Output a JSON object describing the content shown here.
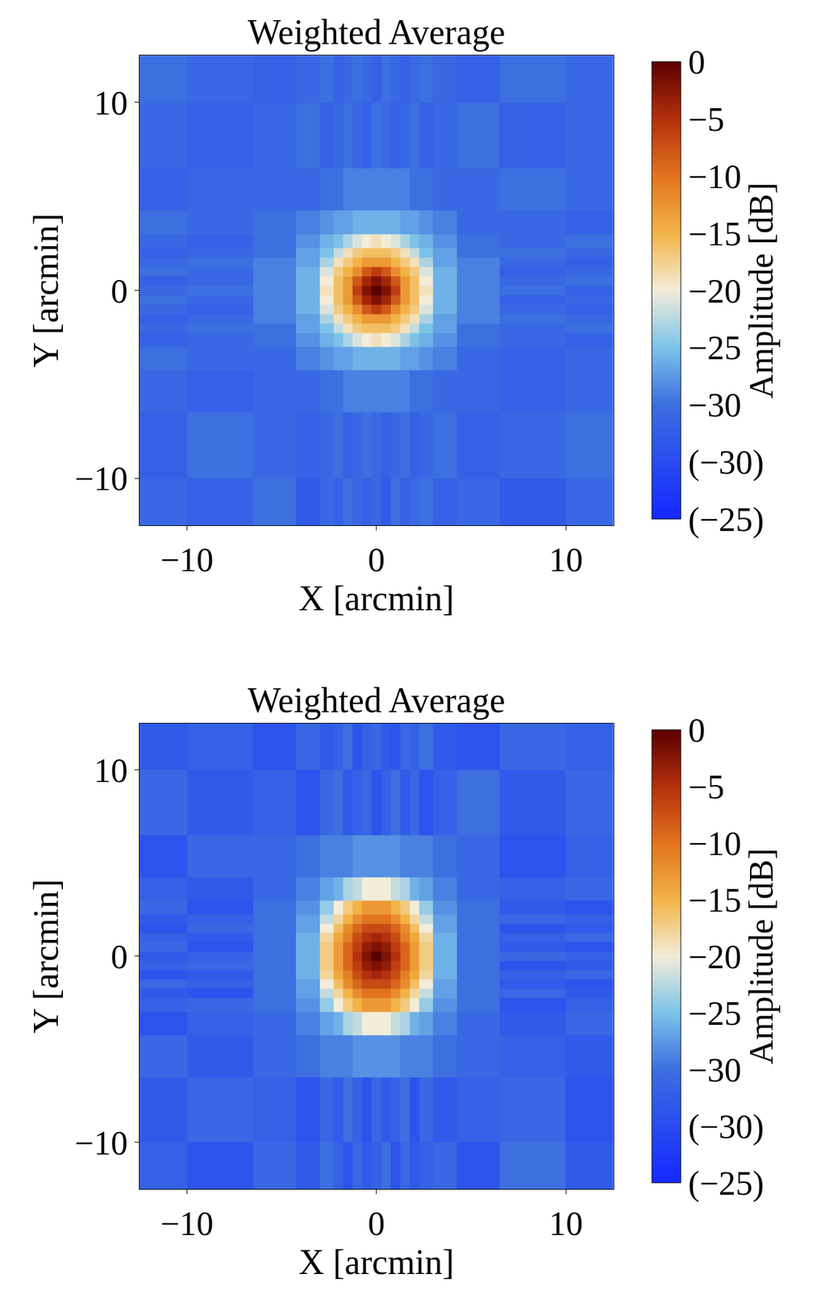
{
  "chart_data": [
    {
      "type": "heatmap",
      "title": "Weighted Average",
      "x_label": "X [arcmin]",
      "y_label": "Y [arcmin]",
      "xlim": [
        -12.5,
        12.5
      ],
      "ylim": [
        -12.5,
        12.5
      ],
      "xticks": [
        -10,
        0,
        10
      ],
      "yticks": [
        -10,
        0,
        10
      ],
      "x": [
        -12,
        -8,
        -5,
        -3.5,
        -2.5,
        -2,
        -1.5,
        -1,
        -0.5,
        0,
        0.5,
        1,
        1.5,
        2,
        2.5,
        3.5,
        5,
        8,
        12
      ],
      "y": [
        -12,
        -8,
        -5,
        -3.5,
        -2.5,
        -2,
        -1.5,
        -1,
        -0.5,
        0,
        0.5,
        1,
        1.5,
        2,
        2.5,
        3.5,
        5,
        8,
        12
      ],
      "z": [
        [
          -31,
          -32,
          -30,
          -33,
          -31,
          -32,
          -30,
          -31,
          -32,
          -31,
          -33,
          -30,
          -32,
          -31,
          -30,
          -32,
          -31,
          -33,
          -31
        ],
        [
          -32,
          -30,
          -31,
          -32,
          -31,
          -30,
          -32,
          -31,
          -30,
          -31,
          -32,
          -31,
          -30,
          -32,
          -31,
          -30,
          -32,
          -31,
          -30
        ],
        [
          -31,
          -32,
          -31,
          -31,
          -30,
          -30,
          -29,
          -29,
          -29,
          -29,
          -29,
          -29,
          -29,
          -30,
          -30,
          -31,
          -31,
          -32,
          -31
        ],
        [
          -30,
          -31,
          -31,
          -29,
          -28,
          -27,
          -27,
          -26,
          -26,
          -26,
          -26,
          -26,
          -27,
          -27,
          -28,
          -29,
          -31,
          -32,
          -31
        ],
        [
          -32,
          -31,
          -30,
          -28,
          -26,
          -25,
          -23,
          -21,
          -20,
          -19,
          -20,
          -21,
          -23,
          -25,
          -26,
          -28,
          -30,
          -31,
          -32
        ],
        [
          -31,
          -30,
          -30,
          -27,
          -25,
          -22,
          -19,
          -17,
          -16,
          -16,
          -16,
          -17,
          -19,
          -22,
          -25,
          -27,
          -30,
          -31,
          -30
        ],
        [
          -32,
          -31,
          -29,
          -27,
          -23,
          -19,
          -17,
          -15,
          -13,
          -13,
          -13,
          -15,
          -17,
          -19,
          -23,
          -27,
          -29,
          -30,
          -31
        ],
        [
          -31,
          -32,
          -29,
          -26,
          -21,
          -17,
          -15,
          -12,
          -8,
          -6,
          -8,
          -12,
          -15,
          -17,
          -21,
          -26,
          -29,
          -31,
          -32
        ],
        [
          -30,
          -31,
          -29,
          -26,
          -20,
          -16,
          -13,
          -8,
          -4,
          -2,
          -4,
          -8,
          -13,
          -16,
          -20,
          -26,
          -29,
          -32,
          -31
        ],
        [
          -31,
          -30,
          -29,
          -26,
          -19,
          -16,
          -13,
          -6,
          -2,
          0,
          -2,
          -6,
          -13,
          -16,
          -19,
          -26,
          -29,
          -30,
          -32
        ],
        [
          -32,
          -31,
          -29,
          -26,
          -20,
          -16,
          -13,
          -8,
          -4,
          -2,
          -4,
          -8,
          -13,
          -16,
          -20,
          -26,
          -29,
          -31,
          -30
        ],
        [
          -30,
          -31,
          -29,
          -26,
          -21,
          -17,
          -15,
          -12,
          -8,
          -6,
          -8,
          -12,
          -15,
          -17,
          -21,
          -26,
          -29,
          -32,
          -31
        ],
        [
          -31,
          -30,
          -29,
          -27,
          -23,
          -19,
          -17,
          -15,
          -13,
          -13,
          -13,
          -15,
          -17,
          -19,
          -23,
          -27,
          -29,
          -31,
          -32
        ],
        [
          -32,
          -31,
          -30,
          -27,
          -25,
          -22,
          -19,
          -17,
          -16,
          -16,
          -16,
          -17,
          -19,
          -22,
          -25,
          -27,
          -30,
          -30,
          -31
        ],
        [
          -31,
          -32,
          -30,
          -28,
          -26,
          -25,
          -23,
          -21,
          -20,
          -19,
          -20,
          -21,
          -23,
          -25,
          -26,
          -28,
          -30,
          -31,
          -30
        ],
        [
          -30,
          -31,
          -30,
          -29,
          -28,
          -27,
          -27,
          -26,
          -26,
          -26,
          -26,
          -26,
          -27,
          -27,
          -28,
          -29,
          -31,
          -31,
          -32
        ],
        [
          -32,
          -31,
          -31,
          -31,
          -30,
          -30,
          -29,
          -29,
          -29,
          -29,
          -29,
          -29,
          -29,
          -30,
          -30,
          -31,
          -31,
          -30,
          -31
        ],
        [
          -31,
          -32,
          -31,
          -30,
          -32,
          -31,
          -30,
          -31,
          -32,
          -30,
          -31,
          -32,
          -31,
          -30,
          -32,
          -31,
          -30,
          -32,
          -31
        ],
        [
          -30,
          -31,
          -32,
          -31,
          -30,
          -32,
          -31,
          -30,
          -31,
          -32,
          -30,
          -31,
          -32,
          -31,
          -30,
          -31,
          -32,
          -30,
          -31
        ]
      ],
      "colorbar": {
        "title": "Amplitude [dB]",
        "range": [
          -40,
          0
        ],
        "ticks": [
          0,
          -5,
          -10,
          -15,
          -20,
          -25,
          -30,
          {
            "value": -35,
            "label": "(−30)"
          },
          {
            "value": -40,
            "label": "(−25)"
          }
        ]
      }
    },
    {
      "type": "heatmap",
      "title": "Weighted Average",
      "x_label": "X [arcmin]",
      "y_label": "Y [arcmin]",
      "xlim": [
        -12.5,
        12.5
      ],
      "ylim": [
        -12.5,
        12.5
      ],
      "xticks": [
        -10,
        0,
        10
      ],
      "yticks": [
        -10,
        0,
        10
      ],
      "x": [
        -12,
        -8,
        -5,
        -3.5,
        -2.5,
        -2,
        -1.5,
        -1,
        -0.5,
        0,
        0.5,
        1,
        1.5,
        2,
        2.5,
        3.5,
        5,
        8,
        12
      ],
      "y": [
        -12,
        -8,
        -5,
        -3.5,
        -2.5,
        -2,
        -1.5,
        -1,
        -0.5,
        0,
        0.5,
        1,
        1.5,
        2,
        2.5,
        3.5,
        5,
        8,
        12
      ],
      "z": [
        [
          -32,
          -34,
          -31,
          -33,
          -30,
          -32,
          -34,
          -31,
          -33,
          -32,
          -30,
          -34,
          -31,
          -33,
          -32,
          -31,
          -34,
          -30,
          -33
        ],
        [
          -33,
          -31,
          -32,
          -34,
          -31,
          -33,
          -30,
          -32,
          -34,
          -31,
          -33,
          -32,
          -30,
          -34,
          -31,
          -33,
          -32,
          -31,
          -34
        ],
        [
          -31,
          -33,
          -31,
          -30,
          -29,
          -29,
          -29,
          -28,
          -28,
          -28,
          -28,
          -28,
          -29,
          -29,
          -29,
          -30,
          -31,
          -32,
          -33
        ],
        [
          -34,
          -32,
          -31,
          -29,
          -27,
          -26,
          -23,
          -22,
          -20,
          -20,
          -20,
          -22,
          -23,
          -26,
          -27,
          -29,
          -31,
          -33,
          -31
        ],
        [
          -32,
          -31,
          -30,
          -28,
          -24,
          -20,
          -17,
          -15,
          -13,
          -13,
          -13,
          -15,
          -17,
          -20,
          -24,
          -28,
          -30,
          -34,
          -32
        ],
        [
          -33,
          -34,
          -30,
          -27,
          -22,
          -18,
          -15,
          -12,
          -10,
          -10,
          -10,
          -12,
          -15,
          -18,
          -22,
          -27,
          -30,
          -31,
          -33
        ],
        [
          -31,
          -32,
          -30,
          -27,
          -20,
          -16,
          -12,
          -9,
          -7,
          -7,
          -7,
          -9,
          -12,
          -16,
          -20,
          -27,
          -30,
          -33,
          -34
        ],
        [
          -34,
          -33,
          -30,
          -26,
          -18,
          -14,
          -11,
          -7,
          -5,
          -4,
          -5,
          -7,
          -11,
          -14,
          -18,
          -26,
          -30,
          -32,
          -31
        ],
        [
          -32,
          -31,
          -30,
          -26,
          -17,
          -13,
          -9,
          -6,
          -3,
          -2,
          -3,
          -6,
          -9,
          -13,
          -17,
          -26,
          -30,
          -34,
          -33
        ],
        [
          -33,
          -32,
          -30,
          -26,
          -17,
          -13,
          -9,
          -5,
          -2,
          0,
          -2,
          -5,
          -9,
          -13,
          -17,
          -26,
          -30,
          -31,
          -32
        ],
        [
          -31,
          -34,
          -30,
          -26,
          -17,
          -13,
          -9,
          -6,
          -3,
          -2,
          -3,
          -6,
          -9,
          -13,
          -17,
          -26,
          -30,
          -33,
          -34
        ],
        [
          -32,
          -33,
          -30,
          -26,
          -18,
          -14,
          -11,
          -7,
          -5,
          -4,
          -5,
          -7,
          -11,
          -14,
          -18,
          -26,
          -30,
          -32,
          -31
        ],
        [
          -34,
          -31,
          -30,
          -27,
          -20,
          -16,
          -12,
          -9,
          -7,
          -7,
          -7,
          -9,
          -12,
          -16,
          -20,
          -27,
          -30,
          -34,
          -33
        ],
        [
          -33,
          -32,
          -30,
          -27,
          -22,
          -18,
          -15,
          -12,
          -10,
          -10,
          -10,
          -12,
          -15,
          -18,
          -22,
          -27,
          -30,
          -31,
          -32
        ],
        [
          -31,
          -34,
          -30,
          -28,
          -24,
          -20,
          -17,
          -15,
          -13,
          -13,
          -13,
          -15,
          -17,
          -20,
          -24,
          -28,
          -30,
          -33,
          -34
        ],
        [
          -32,
          -33,
          -31,
          -29,
          -27,
          -26,
          -23,
          -22,
          -20,
          -20,
          -20,
          -22,
          -23,
          -26,
          -27,
          -29,
          -31,
          -32,
          -31
        ],
        [
          -34,
          -31,
          -31,
          -30,
          -29,
          -29,
          -29,
          -28,
          -28,
          -28,
          -28,
          -28,
          -29,
          -29,
          -29,
          -30,
          -31,
          -34,
          -32
        ],
        [
          -31,
          -33,
          -32,
          -34,
          -31,
          -30,
          -33,
          -32,
          -31,
          -34,
          -32,
          -30,
          -33,
          -31,
          -34,
          -32,
          -30,
          -33,
          -31
        ],
        [
          -33,
          -32,
          -34,
          -31,
          -33,
          -32,
          -30,
          -34,
          -32,
          -31,
          -33,
          -34,
          -31,
          -32,
          -30,
          -33,
          -34,
          -31,
          -32
        ]
      ],
      "colorbar": {
        "title": "Amplitude [dB]",
        "range": [
          -40,
          0
        ],
        "ticks": [
          0,
          -5,
          -10,
          -15,
          -20,
          -25,
          -30,
          {
            "value": -35,
            "label": "(−30)"
          },
          {
            "value": -40,
            "label": "(−25)"
          }
        ]
      }
    }
  ]
}
